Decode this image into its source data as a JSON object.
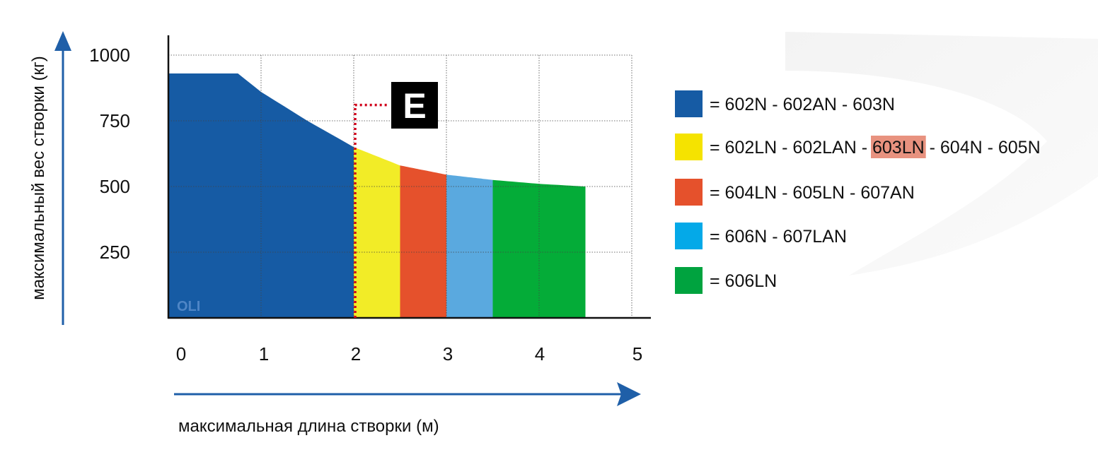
{
  "colors": {
    "axis": "#111111",
    "grid": "#444444",
    "arrow": "#1f5fa8",
    "watermark": "#4f86c6",
    "dotted": "#d0021b",
    "highlight": "#e8927f"
  },
  "chart_data": {
    "type": "area",
    "xlabel": "максимальная длина створки (м)",
    "ylabel": "максимальный вес створки (кг)",
    "xlim": [
      0,
      5
    ],
    "ylim": [
      0,
      1000
    ],
    "x_ticks": [
      "0",
      "1",
      "2",
      "3",
      "4",
      "5"
    ],
    "y_ticks": [
      "250",
      "500",
      "750",
      "1000"
    ],
    "grid": true,
    "watermark": "OLI",
    "marker_label": "E",
    "marker_x": 2,
    "marker_y": 810,
    "curve": [
      {
        "x": 0,
        "y": 930
      },
      {
        "x": 0.75,
        "y": 930
      },
      {
        "x": 1.0,
        "y": 860
      },
      {
        "x": 1.5,
        "y": 750
      },
      {
        "x": 2.0,
        "y": 650
      },
      {
        "x": 2.5,
        "y": 580
      },
      {
        "x": 3.0,
        "y": 545
      },
      {
        "x": 3.5,
        "y": 525
      },
      {
        "x": 4.0,
        "y": 510
      },
      {
        "x": 4.5,
        "y": 500
      }
    ],
    "series": [
      {
        "color": "#165ba4",
        "x_from": 0,
        "x_to": 2.0
      },
      {
        "color": "#f2ec27",
        "x_from": 2.0,
        "x_to": 2.5
      },
      {
        "color": "#e5512c",
        "x_from": 2.5,
        "x_to": 3.0
      },
      {
        "color": "#5aa9df",
        "x_from": 3.0,
        "x_to": 3.5
      },
      {
        "color": "#04ac38",
        "x_from": 3.5,
        "x_to": 4.5
      }
    ],
    "legend": {
      "position": "right",
      "entries": [
        {
          "color": "#165ba4",
          "parts": [
            {
              "text": "= 602N - 602AN - 603N",
              "highlight": false
            }
          ]
        },
        {
          "color": "#f5e300",
          "parts": [
            {
              "text": "= 602LN - 602LAN - ",
              "highlight": false
            },
            {
              "text": "603LN",
              "highlight": true
            },
            {
              "text": " - 604N - 605N",
              "highlight": false
            }
          ]
        },
        {
          "color": "#e5512c",
          "parts": [
            {
              "text": "= 604LN - 605LN - 607AN",
              "highlight": false
            }
          ]
        },
        {
          "color": "#04a9e8",
          "parts": [
            {
              "text": "= 606N - 607LAN",
              "highlight": false
            }
          ]
        },
        {
          "color": "#00a33f",
          "parts": [
            {
              "text": "= 606LN",
              "highlight": false
            }
          ]
        }
      ]
    }
  }
}
